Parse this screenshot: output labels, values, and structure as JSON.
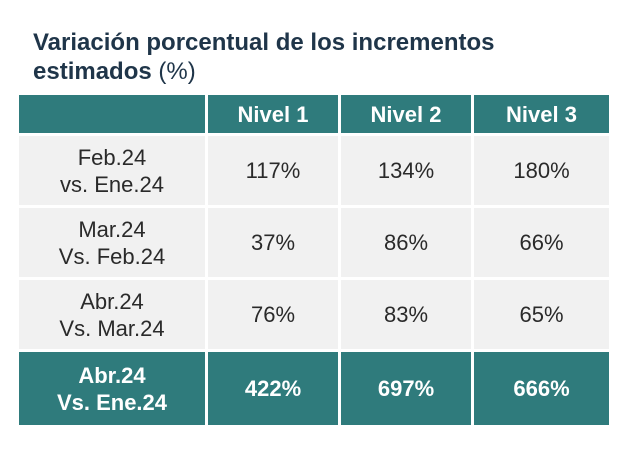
{
  "title": {
    "text": "Variación porcentual de los incrementos estimados",
    "unit": "(%)"
  },
  "table": {
    "columns": [
      "",
      "Nivel 1",
      "Nivel 2",
      "Nivel 3"
    ],
    "rows": [
      {
        "label_line1": "Feb.24",
        "label_line2": "vs. Ene.24",
        "values": [
          "117%",
          "134%",
          "180%"
        ]
      },
      {
        "label_line1": "Mar.24",
        "label_line2": "Vs. Feb.24",
        "values": [
          "37%",
          "86%",
          "66%"
        ]
      },
      {
        "label_line1": "Abr.24",
        "label_line2": "Vs. Mar.24",
        "values": [
          "76%",
          "83%",
          "65%"
        ]
      }
    ],
    "total": {
      "label_line1": "Abr.24",
      "label_line2": "Vs. Ene.24",
      "values": [
        "422%",
        "697%",
        "666%"
      ]
    }
  },
  "colors": {
    "header_bg": "#2f7b7c",
    "row_bg": "#f1f1f1",
    "title": "#1f3549"
  }
}
